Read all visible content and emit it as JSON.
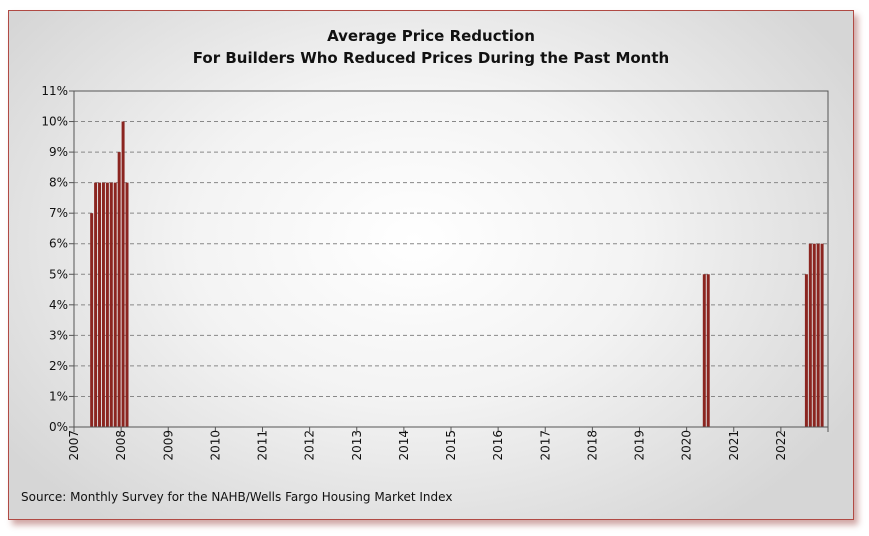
{
  "chart_data": {
    "type": "bar",
    "title": "Average Price Reduction",
    "subtitle": "For Builders Who Reduced Prices During the Past Month",
    "xlabel": "",
    "ylabel": "",
    "source": "Source: Monthly Survey for the NAHB/Wells Fargo Housing Market Index",
    "bar_color": "#8b2520",
    "grid": true,
    "y_ticks": [
      "0%",
      "1%",
      "2%",
      "3%",
      "4%",
      "5%",
      "6%",
      "7%",
      "8%",
      "9%",
      "10%",
      "11%"
    ],
    "ylim": [
      0,
      11
    ],
    "x_ticks": [
      "2007",
      "2008",
      "2009",
      "2010",
      "2011",
      "2012",
      "2013",
      "2014",
      "2015",
      "2016",
      "2017",
      "2018",
      "2019",
      "2020",
      "2021",
      "2022"
    ],
    "xlim": [
      "2007-01",
      "2022-12"
    ],
    "x": [
      "2007-05",
      "2007-06",
      "2007-07",
      "2007-08",
      "2007-09",
      "2007-10",
      "2007-11",
      "2007-12",
      "2008-01",
      "2008-02",
      "2008-03",
      "2020-05",
      "2020-06",
      "2022-07",
      "2022-08",
      "2022-09",
      "2022-10",
      "2022-11"
    ],
    "values": [
      7,
      8,
      8,
      8,
      8,
      8,
      8,
      9,
      10,
      8,
      null,
      5,
      5,
      5,
      6,
      6,
      6,
      6
    ]
  }
}
